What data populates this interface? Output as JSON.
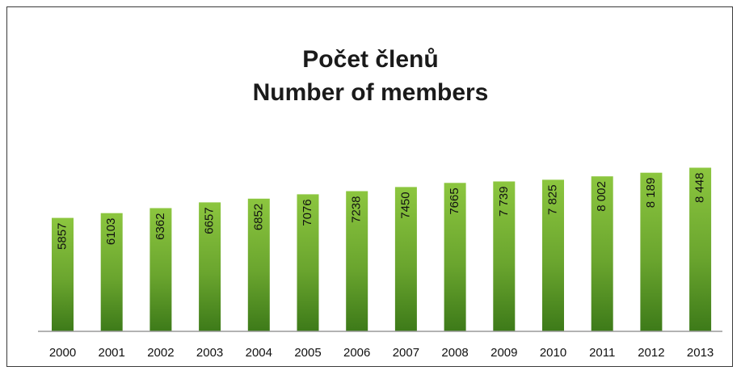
{
  "chart_data": {
    "type": "bar",
    "title": "Počet členů",
    "subtitle": "Number of members",
    "categories": [
      "2000",
      "2001",
      "2002",
      "2003",
      "2004",
      "2005",
      "2006",
      "2007",
      "2008",
      "2009",
      "2010",
      "2011",
      "2012",
      "2013"
    ],
    "values": [
      5857,
      6103,
      6362,
      6657,
      6852,
      7076,
      7238,
      7450,
      7665,
      7739,
      7825,
      8002,
      8189,
      8448
    ],
    "value_labels": [
      "5857",
      "6103",
      "6362",
      "6657",
      "6852",
      "7076",
      "7238",
      "7450",
      "7665",
      "7 739",
      "7 825",
      "8 002",
      "8 189",
      "8 448"
    ],
    "ylim": [
      0,
      14000
    ],
    "grid": false,
    "legend": "none",
    "bar_color_top": "#8cc63f",
    "bar_color_bottom": "#3d7a19"
  }
}
